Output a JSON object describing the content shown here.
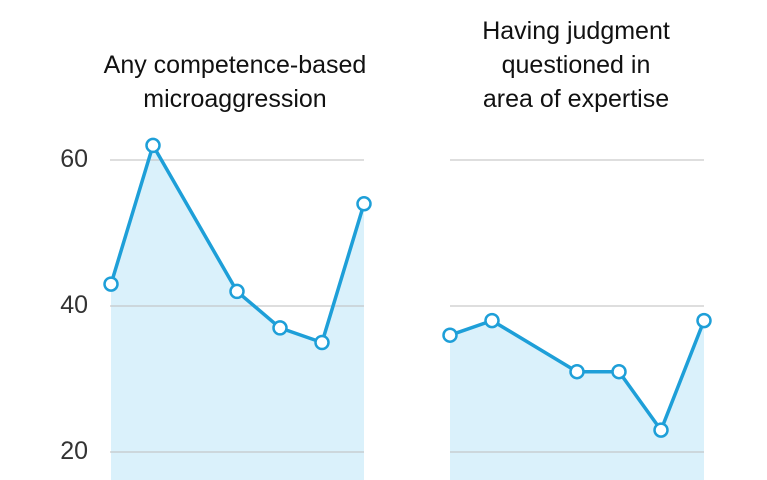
{
  "chart_data": [
    {
      "type": "area",
      "title": "Any competence-based\nmicroaggression",
      "points": [
        43,
        62,
        42,
        37,
        35,
        54
      ],
      "ylim": [
        20,
        62
      ],
      "yticks": [
        "60",
        "40",
        "20"
      ],
      "grid": true,
      "colors": {
        "line": "#1e9fd8",
        "fill": "#daf1fb",
        "grid": "#bdbdbd"
      }
    },
    {
      "type": "area",
      "title": "Having judgment\nquestioned in\narea of expertise",
      "points": [
        36,
        38,
        31,
        31,
        23,
        38
      ],
      "ylim": [
        20,
        62
      ],
      "yticks": [
        "60",
        "40",
        "20"
      ],
      "grid": true,
      "colors": {
        "line": "#1e9fd8",
        "fill": "#daf1fb",
        "grid": "#bdbdbd"
      }
    }
  ]
}
